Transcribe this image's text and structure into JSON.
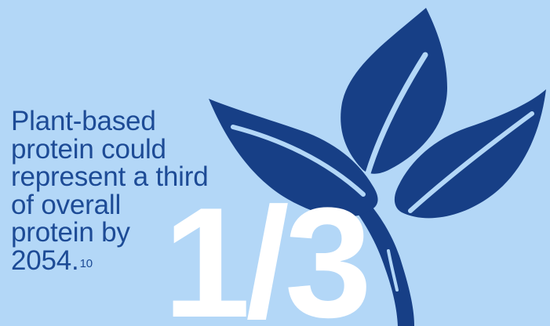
{
  "colors": {
    "background": "#b3d7f7",
    "leaf": "#173f86",
    "text": "#1d4b96",
    "fraction": "#ffffff"
  },
  "icons": {
    "plant": "plant-sprout-icon"
  },
  "statement": {
    "line1": "Plant-based",
    "line2": "protein could",
    "line3": "represent a third",
    "line4": "of overall",
    "line5": "protein by",
    "line6": "2054.",
    "footnote": "10"
  },
  "stat": {
    "fraction": "1/3"
  }
}
